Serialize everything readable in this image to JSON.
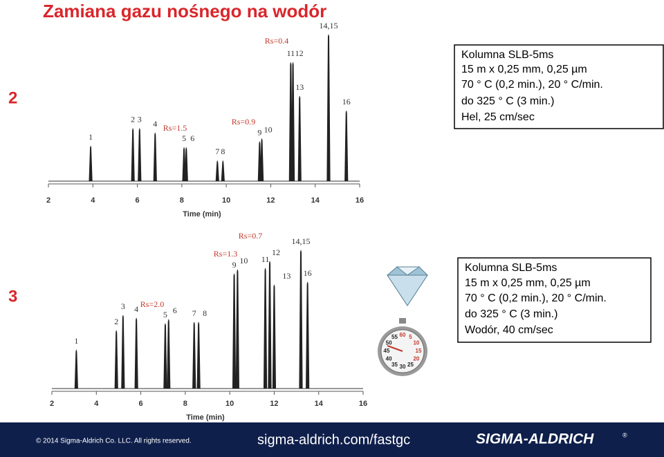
{
  "title": "Zamiana gazu nośnego na wodór",
  "sections": [
    {
      "number": "2",
      "info": [
        "Kolumna SLB-5ms",
        "15 m x 0,25 mm, 0,25 µm",
        "70 ° C (0,2 min.), 20 ° C/min.",
        " do 325 ° C (3 min.)",
        "Hel, 25 cm/sec"
      ]
    },
    {
      "number": "3",
      "info": [
        "Kolumna SLB-5ms",
        "15 m x 0,25 mm, 0,25 µm",
        "70 ° C (0,2 min.), 20 ° C/min.",
        " do 325 ° C (3 min.)",
        "Wodór,  40 cm/sec"
      ]
    }
  ],
  "chart_data": [
    {
      "type": "chromatogram",
      "x_label": "Time (min)",
      "xlim": [
        2,
        16
      ],
      "xticks": [
        2,
        4,
        6,
        8,
        10,
        12,
        14,
        16
      ],
      "ylim": [
        0,
        100
      ],
      "peaks": {
        "labels": [
          "1",
          "2",
          "3",
          "4",
          "5",
          "6",
          "7",
          "8",
          "9",
          "10",
          "11",
          "12",
          "13",
          "14,15",
          "16"
        ],
        "x": [
          3.9,
          5.8,
          6.1,
          6.8,
          8.1,
          8.2,
          9.6,
          9.85,
          11.5,
          11.6,
          12.9,
          13.0,
          13.3,
          14.6,
          15.4
        ],
        "values": [
          24,
          36,
          36,
          33,
          23,
          23,
          14,
          14,
          27,
          29,
          81,
          81,
          58,
          100,
          48
        ]
      },
      "annotations": [
        "Rs=0.4",
        "Rs=1.5",
        "Rs=0.9"
      ]
    },
    {
      "type": "chromatogram",
      "x_label": "Time (min)",
      "xlim": [
        2,
        16
      ],
      "xticks": [
        2,
        4,
        6,
        8,
        10,
        12,
        14,
        16
      ],
      "ylim": [
        0,
        100
      ],
      "peaks": {
        "labels": [
          "1",
          "2",
          "3",
          "4",
          "5",
          "6",
          "7",
          "8",
          "9",
          "10",
          "11",
          "12",
          "13",
          "14,15",
          "16"
        ],
        "x": [
          3.1,
          4.9,
          5.2,
          5.8,
          7.1,
          7.25,
          8.4,
          8.6,
          10.2,
          10.35,
          11.6,
          11.8,
          12.0,
          13.2,
          13.5
        ],
        "values": [
          28,
          42,
          53,
          51,
          47,
          50,
          48,
          48,
          83,
          86,
          87,
          92,
          75,
          100,
          77
        ]
      },
      "annotations": [
        "Rs=0.7",
        "Rs=1.3",
        "Rs=2.0"
      ]
    }
  ],
  "stopwatch_dial": [
    "60",
    "5",
    "10",
    "15",
    "20",
    "25",
    "30",
    "35",
    "40",
    "45",
    "50",
    "55"
  ],
  "footer": {
    "copyright": "© 2014 Sigma-Aldrich Co. LLC. All rights reserved.",
    "url": "sigma-aldrich.com/fastgc",
    "logo": "SIGMA-ALDRICH",
    "logo_mark": "®"
  }
}
